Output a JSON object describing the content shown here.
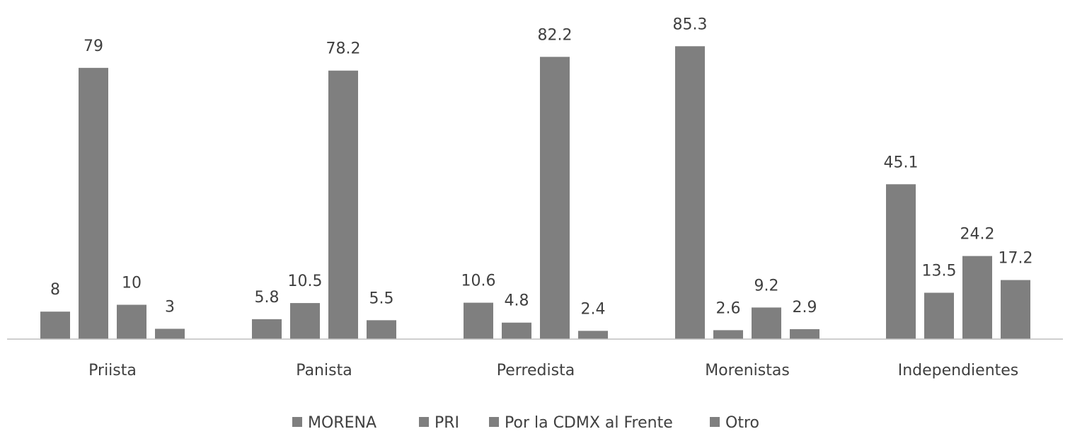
{
  "chart_data": {
    "type": "bar",
    "title": "",
    "xlabel": "",
    "ylabel": "",
    "ylim": [
      0,
      90
    ],
    "grid": false,
    "legend_position": "bottom",
    "categories": [
      "Priista",
      "Panista",
      "Perredista",
      "Morenistas",
      "Independientes"
    ],
    "series": [
      {
        "name": "MORENA",
        "values": [
          8,
          5.8,
          10.6,
          85.3,
          45.1
        ],
        "labels": [
          "8",
          "5.8",
          "10.6",
          "85.3",
          "45.1"
        ]
      },
      {
        "name": "PRI",
        "values": [
          79,
          10.5,
          4.8,
          2.6,
          13.5
        ],
        "labels": [
          "79",
          "10.5",
          "4.8",
          "2.6",
          "13.5"
        ]
      },
      {
        "name": "Por la CDMX al Frente",
        "values": [
          10,
          78.2,
          82.2,
          9.2,
          24.2
        ],
        "labels": [
          "10",
          "78.2",
          "82.2",
          "9.2",
          "24.2"
        ]
      },
      {
        "name": "Otro",
        "values": [
          3,
          5.5,
          2.4,
          2.9,
          17.2
        ],
        "labels": [
          "3",
          "5.5",
          "2.4",
          "2.9",
          "17.2"
        ]
      }
    ],
    "colors": {
      "bar": "#7f7f7f",
      "axis": "#bfbfbf",
      "text": "#404040"
    }
  }
}
